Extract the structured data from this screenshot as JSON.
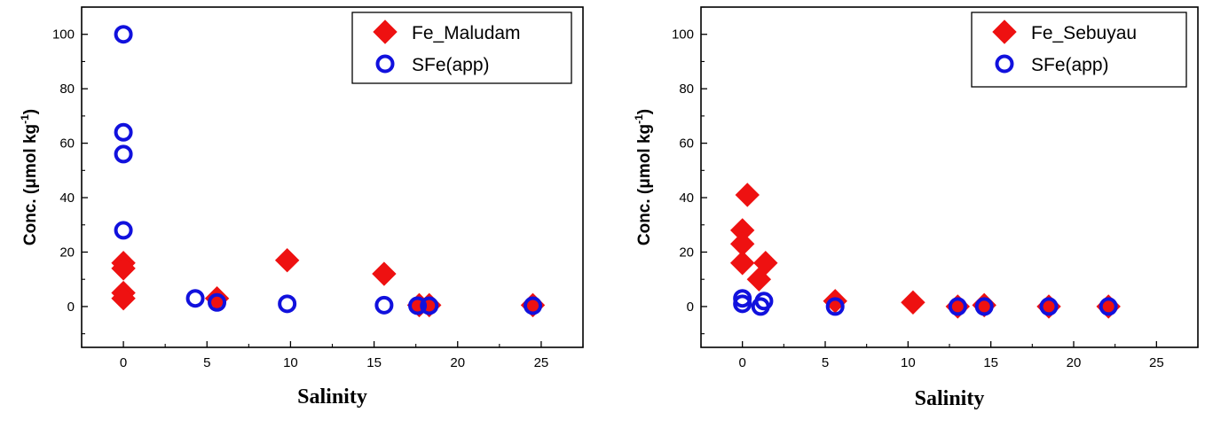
{
  "chart_data": [
    {
      "type": "scatter",
      "xlabel": "Salinity",
      "ylabel": {
        "base": "Conc. (μmol kg",
        "sup": "-1",
        "close": ")"
      },
      "xlim": [
        -2.5,
        27.5
      ],
      "ylim": [
        -15,
        110
      ],
      "xticks": [
        0,
        5,
        10,
        15,
        20,
        25
      ],
      "yticks": [
        0,
        20,
        40,
        60,
        80,
        100
      ],
      "grid": false,
      "legend_position": "top-right",
      "series": [
        {
          "name": "Fe_Maludam",
          "marker": "diamond",
          "color": "#ee1111",
          "points": [
            [
              0,
              16
            ],
            [
              0,
              14
            ],
            [
              0,
              5
            ],
            [
              0,
              3
            ],
            [
              5.6,
              3
            ],
            [
              9.8,
              17
            ],
            [
              15.6,
              12
            ],
            [
              17.7,
              0.5
            ],
            [
              18.3,
              0.5
            ],
            [
              24.5,
              0.5
            ]
          ]
        },
        {
          "name": "SFe(app)",
          "marker": "circle",
          "color": "#1111dd",
          "points": [
            [
              0,
              100
            ],
            [
              0,
              64
            ],
            [
              0,
              56
            ],
            [
              0,
              28
            ],
            [
              4.3,
              3
            ],
            [
              5.6,
              1.5
            ],
            [
              9.8,
              1
            ],
            [
              15.6,
              0.5
            ],
            [
              17.6,
              0.3
            ],
            [
              18.3,
              0.3
            ],
            [
              24.5,
              0.3
            ]
          ]
        }
      ]
    },
    {
      "type": "scatter",
      "xlabel": "Salinity",
      "ylabel": {
        "base": "Conc. (μmol kg",
        "sup": "-1",
        "close": ")"
      },
      "xlim": [
        -2.5,
        27.5
      ],
      "ylim": [
        -15,
        110
      ],
      "xticks": [
        0,
        5,
        10,
        15,
        20,
        25
      ],
      "yticks": [
        0,
        20,
        40,
        60,
        80,
        100
      ],
      "grid": false,
      "legend_position": "top-right",
      "series": [
        {
          "name": "Fe_Sebuyau",
          "marker": "diamond",
          "color": "#ee1111",
          "points": [
            [
              0.3,
              41
            ],
            [
              0,
              28
            ],
            [
              0,
              23
            ],
            [
              0,
              16
            ],
            [
              1.4,
              16
            ],
            [
              1.0,
              10
            ],
            [
              5.6,
              2
            ],
            [
              10.3,
              1.5
            ],
            [
              13.0,
              0
            ],
            [
              14.6,
              0.5
            ],
            [
              18.5,
              0
            ],
            [
              22.1,
              0
            ]
          ]
        },
        {
          "name": "SFe(app)",
          "marker": "circle",
          "color": "#1111dd",
          "points": [
            [
              0,
              3
            ],
            [
              0,
              1
            ],
            [
              1.1,
              0
            ],
            [
              1.3,
              2
            ],
            [
              5.6,
              0
            ],
            [
              13.0,
              0
            ],
            [
              14.6,
              0
            ],
            [
              18.5,
              0
            ],
            [
              22.1,
              0
            ]
          ]
        }
      ]
    }
  ]
}
